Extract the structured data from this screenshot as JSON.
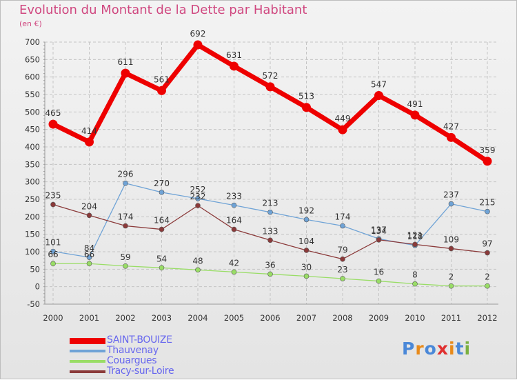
{
  "header": {
    "title": "Evolution du Montant de la Dette par Habitant",
    "subtitle": "(en €)"
  },
  "brand": {
    "text": "Proxiti",
    "colors": [
      "#4a88d8",
      "#e88a1a",
      "#4a88d8",
      "#e03030",
      "#e88a1a",
      "#4a88d8",
      "#7ab040"
    ]
  },
  "chart_data": {
    "type": "line",
    "title": "Evolution du Montant de la Dette par Habitant",
    "subtitle": "(en €)",
    "x": [
      2000,
      2001,
      2002,
      2003,
      2004,
      2005,
      2006,
      2007,
      2008,
      2009,
      2010,
      2011,
      2012
    ],
    "ylim": [
      -50,
      700
    ],
    "yticks": [
      -50,
      0,
      50,
      100,
      150,
      200,
      250,
      300,
      350,
      400,
      450,
      500,
      550,
      600,
      650,
      700
    ],
    "grid": true,
    "legend_position": "bottom-left",
    "series": [
      {
        "name": "SAINT-BOUIZE",
        "color": "#ee0000",
        "width": 7,
        "marker": 6.5,
        "values": [
          465,
          414,
          611,
          561,
          692,
          631,
          572,
          513,
          449,
          547,
          491,
          427,
          359
        ]
      },
      {
        "name": "Thauvenay",
        "color": "#6fa3d6",
        "width": 1.3,
        "marker": 3.5,
        "values": [
          101,
          84,
          296,
          270,
          252,
          233,
          213,
          192,
          174,
          137,
          118,
          237,
          215
        ]
      },
      {
        "name": "Couargues",
        "color": "#99dd66",
        "width": 1.3,
        "marker": 3.5,
        "values": [
          66,
          66,
          59,
          54,
          48,
          42,
          36,
          30,
          23,
          16,
          8,
          2,
          2
        ]
      },
      {
        "name": "Tracy-sur-Loire",
        "color": "#8b3a3a",
        "width": 1.3,
        "marker": 3.5,
        "values": [
          235,
          204,
          174,
          164,
          232,
          164,
          133,
          104,
          79,
          134,
          121,
          109,
          97
        ]
      }
    ]
  }
}
